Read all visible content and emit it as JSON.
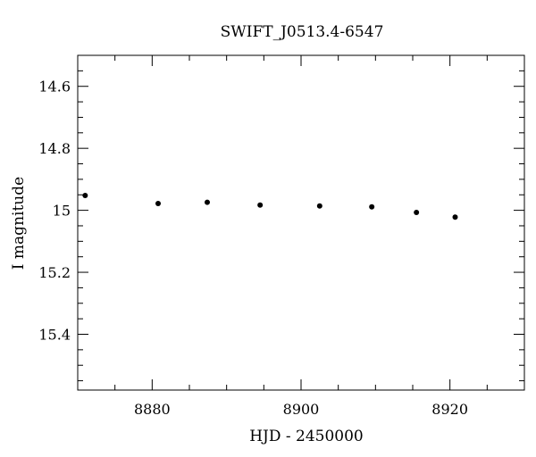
{
  "chart_data": {
    "type": "scatter",
    "title": "SWIFT_J0513.4-6547",
    "xlabel": "HJD - 2450000",
    "ylabel": "I magnitude",
    "xlim": [
      8870,
      8930
    ],
    "ylim": [
      15.58,
      14.5
    ],
    "y_inverted": true,
    "grid": false,
    "x_ticks": [
      8880,
      8900,
      8920
    ],
    "x_tick_labels": [
      "8880",
      "8900",
      "8920"
    ],
    "y_ticks": [
      14.6,
      14.8,
      15.0,
      15.2,
      15.4
    ],
    "y_tick_labels": [
      "14.6",
      "14.8",
      "15",
      "15.2",
      "15.4"
    ],
    "x_minor_step": 5,
    "y_minor_step": 0.05,
    "points": [
      {
        "x": 8871.0,
        "y": 14.952
      },
      {
        "x": 8880.8,
        "y": 14.978
      },
      {
        "x": 8887.4,
        "y": 14.974
      },
      {
        "x": 8894.5,
        "y": 14.983
      },
      {
        "x": 8902.5,
        "y": 14.986
      },
      {
        "x": 8909.5,
        "y": 14.989
      },
      {
        "x": 8915.5,
        "y": 15.007
      },
      {
        "x": 8920.7,
        "y": 15.022
      }
    ]
  }
}
